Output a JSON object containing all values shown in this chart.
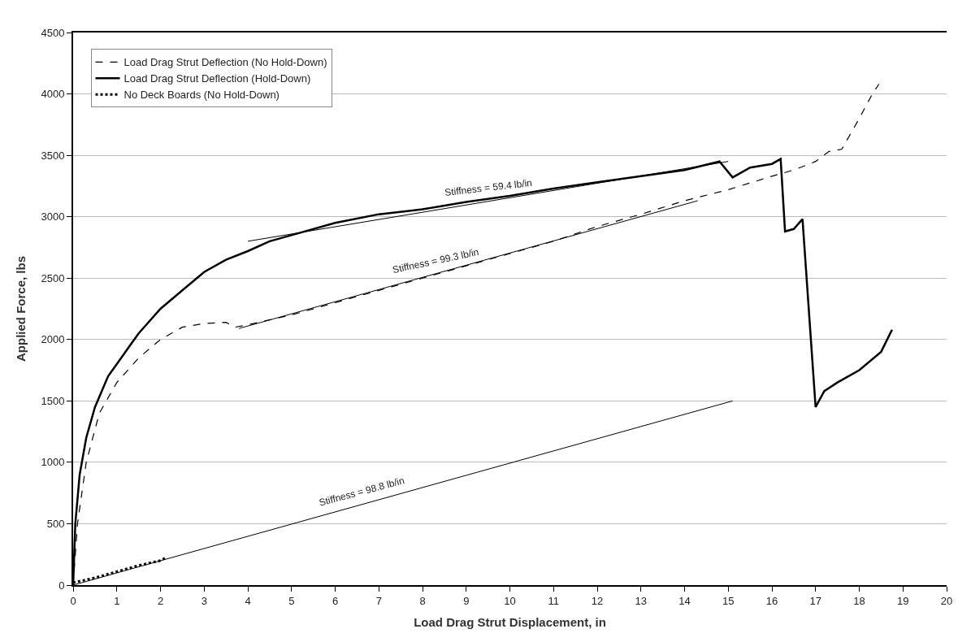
{
  "chart_data": {
    "type": "line",
    "xlabel": "Load Drag Strut Displacement, in",
    "ylabel": "Applied Force, lbs",
    "xlim": [
      0,
      20
    ],
    "xticks": [
      0,
      1,
      2,
      3,
      4,
      5,
      6,
      7,
      8,
      9,
      10,
      11,
      12,
      13,
      14,
      15,
      16,
      17,
      18,
      19,
      20
    ],
    "ylim": [
      0,
      4500
    ],
    "yticks": [
      0,
      500,
      1000,
      1500,
      2000,
      2500,
      3000,
      3500,
      4000,
      4500
    ],
    "grid": "y",
    "legend": "top left",
    "marker": "none",
    "series": [
      {
        "name": "Load Drag Strut Deflection (No Hold-Down)",
        "color": "#000000",
        "line_style": "dashed",
        "x": [
          0,
          0.1,
          0.3,
          0.6,
          1,
          1.5,
          2,
          2.5,
          3,
          3.5,
          3.7,
          4,
          5,
          6,
          7,
          8,
          9,
          10,
          11,
          12,
          13,
          14,
          15,
          16,
          16.5,
          17,
          17.3,
          17.6,
          18,
          18.3,
          18.45
        ],
        "values": [
          0,
          500,
          1000,
          1400,
          1650,
          1850,
          2000,
          2100,
          2130,
          2140,
          2100,
          2120,
          2200,
          2300,
          2400,
          2500,
          2600,
          2700,
          2800,
          2920,
          3020,
          3130,
          3220,
          3330,
          3380,
          3450,
          3530,
          3550,
          3800,
          4000,
          4080
        ]
      },
      {
        "name": "Load Drag Strut Deflection (Hold-Down)",
        "color": "#000000",
        "line_style": "solid",
        "x": [
          0,
          0.05,
          0.15,
          0.3,
          0.5,
          0.8,
          1,
          1.3,
          1.5,
          2,
          2.5,
          3,
          3.5,
          4,
          4.5,
          5,
          6,
          7,
          8,
          9,
          10,
          11,
          12,
          13,
          14,
          14.8,
          15.1,
          15.5,
          16,
          16.2,
          16.3,
          16.5,
          16.7,
          17,
          17.2,
          17.5,
          18,
          18.5,
          18.75
        ],
        "values": [
          0,
          500,
          900,
          1200,
          1450,
          1700,
          1800,
          1950,
          2050,
          2250,
          2400,
          2550,
          2650,
          2720,
          2800,
          2850,
          2950,
          3020,
          3060,
          3120,
          3170,
          3230,
          3280,
          3330,
          3380,
          3450,
          3320,
          3400,
          3430,
          3470,
          2880,
          2900,
          2980,
          1450,
          1580,
          1650,
          1750,
          1900,
          2080
        ]
      },
      {
        "name": "No Deck Boards (No Hold-Down)",
        "color": "#000000",
        "line_style": "dotted",
        "x": [
          0,
          0.5,
          1,
          1.5,
          2,
          2.1
        ],
        "values": [
          20,
          60,
          110,
          160,
          200,
          220
        ]
      },
      {
        "color": "#000000",
        "line_style": "solid",
        "x": [
          0,
          15.1
        ],
        "values": [
          0,
          1500
        ]
      },
      {
        "color": "#000000",
        "line_style": "solid",
        "x": [
          3.8,
          14.3
        ],
        "values": [
          2090,
          3130
        ]
      },
      {
        "color": "#000000",
        "line_style": "solid",
        "x": [
          4,
          15
        ],
        "values": [
          2800,
          3450
        ]
      }
    ],
    "annotations": [
      {
        "text": "Stiffness = 59.4 lb/in",
        "x": 9.5,
        "y": 3127
      },
      {
        "text": "Stiffness = 99.3 lb/in",
        "x": 8.3,
        "y": 2536
      },
      {
        "text": "Stiffness = 98.8 lb/in",
        "x": 6.6,
        "y": 656
      }
    ]
  }
}
